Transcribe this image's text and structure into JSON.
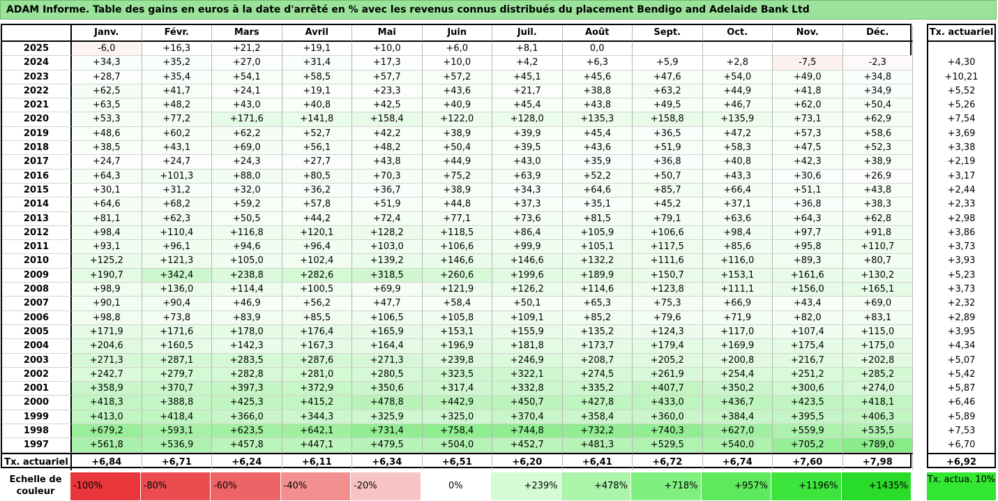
{
  "title": "ADAM Informe. Table des gains en euros à la date d'arrêté en % avec les revenus connus distribués du placement Bendigo and Adelaide Bank Ltd",
  "chart_data": {
    "type": "table",
    "title": "ADAM Informe. Table des gains en euros à la date d'arrêté en % avec les revenus connus distribués du placement Bendigo and Adelaide Bank Ltd",
    "columns": [
      "Janv.",
      "Févr.",
      "Mars",
      "Avril",
      "Mai",
      "Juin",
      "Juil.",
      "Août",
      "Sept.",
      "Oct.",
      "Nov.",
      "Déc."
    ],
    "annual_header": "Tx. actuariel",
    "rows": [
      {
        "year": "2025",
        "values": [
          "-6,0",
          "+16,3",
          "+21,2",
          "+19,1",
          "+10,0",
          "+6,0",
          "+8,1",
          "0,0",
          "",
          "",
          "",
          ""
        ],
        "rate": ""
      },
      {
        "year": "2024",
        "values": [
          "+34,3",
          "+35,2",
          "+27,0",
          "+31,4",
          "+17,3",
          "+10,0",
          "+4,2",
          "+6,3",
          "+5,9",
          "+2,8",
          "-7,5",
          "-2,3"
        ],
        "rate": "+4,30"
      },
      {
        "year": "2023",
        "values": [
          "+28,7",
          "+35,4",
          "+54,1",
          "+58,5",
          "+57,7",
          "+57,2",
          "+45,1",
          "+45,6",
          "+47,6",
          "+54,0",
          "+49,0",
          "+34,8"
        ],
        "rate": "+10,21"
      },
      {
        "year": "2022",
        "values": [
          "+62,5",
          "+41,7",
          "+24,1",
          "+19,1",
          "+23,3",
          "+43,6",
          "+21,7",
          "+38,8",
          "+63,2",
          "+44,9",
          "+41,8",
          "+34,9"
        ],
        "rate": "+5,52"
      },
      {
        "year": "2021",
        "values": [
          "+63,5",
          "+48,2",
          "+43,0",
          "+40,8",
          "+42,5",
          "+40,9",
          "+45,4",
          "+43,8",
          "+49,5",
          "+46,7",
          "+62,0",
          "+50,4"
        ],
        "rate": "+5,26"
      },
      {
        "year": "2020",
        "values": [
          "+53,3",
          "+77,2",
          "+171,6",
          "+141,8",
          "+158,4",
          "+122,0",
          "+128,0",
          "+135,3",
          "+158,8",
          "+135,9",
          "+73,1",
          "+62,9"
        ],
        "rate": "+7,54"
      },
      {
        "year": "2019",
        "values": [
          "+48,6",
          "+60,2",
          "+62,2",
          "+52,7",
          "+42,2",
          "+38,9",
          "+39,9",
          "+45,4",
          "+36,5",
          "+47,2",
          "+57,3",
          "+58,6"
        ],
        "rate": "+3,69"
      },
      {
        "year": "2018",
        "values": [
          "+38,5",
          "+43,1",
          "+69,0",
          "+56,1",
          "+48,2",
          "+50,4",
          "+39,5",
          "+43,6",
          "+51,9",
          "+58,3",
          "+47,5",
          "+52,3"
        ],
        "rate": "+3,38"
      },
      {
        "year": "2017",
        "values": [
          "+24,7",
          "+24,7",
          "+24,3",
          "+27,7",
          "+43,8",
          "+44,9",
          "+43,0",
          "+35,9",
          "+36,8",
          "+40,8",
          "+42,3",
          "+38,9"
        ],
        "rate": "+2,19"
      },
      {
        "year": "2016",
        "values": [
          "+64,3",
          "+101,3",
          "+88,0",
          "+80,5",
          "+70,3",
          "+75,2",
          "+63,9",
          "+52,2",
          "+50,7",
          "+43,3",
          "+30,6",
          "+26,9"
        ],
        "rate": "+3,17"
      },
      {
        "year": "2015",
        "values": [
          "+30,1",
          "+31,2",
          "+32,0",
          "+36,2",
          "+36,7",
          "+38,9",
          "+34,3",
          "+64,6",
          "+85,7",
          "+66,4",
          "+51,1",
          "+43,8"
        ],
        "rate": "+2,44"
      },
      {
        "year": "2014",
        "values": [
          "+64,6",
          "+68,2",
          "+59,2",
          "+57,8",
          "+51,9",
          "+44,8",
          "+37,3",
          "+35,1",
          "+45,2",
          "+37,1",
          "+36,8",
          "+38,3"
        ],
        "rate": "+2,33"
      },
      {
        "year": "2013",
        "values": [
          "+81,1",
          "+62,3",
          "+50,5",
          "+44,2",
          "+72,4",
          "+77,1",
          "+73,6",
          "+81,5",
          "+79,1",
          "+63,6",
          "+64,3",
          "+62,8"
        ],
        "rate": "+2,98"
      },
      {
        "year": "2012",
        "values": [
          "+98,4",
          "+110,4",
          "+116,8",
          "+120,1",
          "+128,2",
          "+118,5",
          "+86,4",
          "+105,9",
          "+106,6",
          "+98,4",
          "+97,7",
          "+91,8"
        ],
        "rate": "+3,86"
      },
      {
        "year": "2011",
        "values": [
          "+93,1",
          "+96,1",
          "+94,6",
          "+96,4",
          "+103,0",
          "+106,6",
          "+99,9",
          "+105,1",
          "+117,5",
          "+85,6",
          "+95,8",
          "+110,7"
        ],
        "rate": "+3,73"
      },
      {
        "year": "2010",
        "values": [
          "+125,2",
          "+121,3",
          "+105,0",
          "+102,4",
          "+139,2",
          "+146,6",
          "+146,6",
          "+132,2",
          "+111,6",
          "+116,0",
          "+89,3",
          "+80,7"
        ],
        "rate": "+3,93"
      },
      {
        "year": "2009",
        "values": [
          "+190,7",
          "+342,4",
          "+238,8",
          "+282,6",
          "+318,5",
          "+260,6",
          "+199,6",
          "+189,9",
          "+150,7",
          "+153,1",
          "+161,6",
          "+130,2"
        ],
        "rate": "+5,23"
      },
      {
        "year": "2008",
        "values": [
          "+98,9",
          "+136,0",
          "+114,4",
          "+100,5",
          "+69,9",
          "+121,9",
          "+126,2",
          "+114,6",
          "+123,8",
          "+111,1",
          "+156,0",
          "+165,1"
        ],
        "rate": "+3,73"
      },
      {
        "year": "2007",
        "values": [
          "+90,1",
          "+90,4",
          "+46,9",
          "+56,2",
          "+47,7",
          "+58,4",
          "+50,1",
          "+65,3",
          "+75,3",
          "+66,9",
          "+43,4",
          "+69,0"
        ],
        "rate": "+2,32"
      },
      {
        "year": "2006",
        "values": [
          "+98,8",
          "+73,8",
          "+83,9",
          "+85,5",
          "+106,5",
          "+105,8",
          "+109,1",
          "+85,2",
          "+79,6",
          "+71,9",
          "+82,0",
          "+83,1"
        ],
        "rate": "+2,89"
      },
      {
        "year": "2005",
        "values": [
          "+171,9",
          "+171,6",
          "+178,0",
          "+176,4",
          "+165,9",
          "+153,1",
          "+155,9",
          "+135,2",
          "+124,3",
          "+117,0",
          "+107,4",
          "+115,0"
        ],
        "rate": "+3,95"
      },
      {
        "year": "2004",
        "values": [
          "+204,6",
          "+160,5",
          "+142,3",
          "+167,3",
          "+164,4",
          "+196,9",
          "+181,8",
          "+173,7",
          "+179,4",
          "+169,9",
          "+175,4",
          "+175,0"
        ],
        "rate": "+4,34"
      },
      {
        "year": "2003",
        "values": [
          "+271,3",
          "+287,1",
          "+283,5",
          "+287,6",
          "+271,3",
          "+239,8",
          "+246,9",
          "+208,7",
          "+205,2",
          "+200,8",
          "+216,7",
          "+202,8"
        ],
        "rate": "+5,07"
      },
      {
        "year": "2002",
        "values": [
          "+242,7",
          "+279,7",
          "+282,8",
          "+281,0",
          "+280,5",
          "+323,5",
          "+322,1",
          "+274,5",
          "+261,9",
          "+254,4",
          "+251,2",
          "+285,2"
        ],
        "rate": "+5,42"
      },
      {
        "year": "2001",
        "values": [
          "+358,9",
          "+370,7",
          "+397,3",
          "+372,9",
          "+350,6",
          "+317,4",
          "+332,8",
          "+335,2",
          "+407,7",
          "+350,2",
          "+300,6",
          "+274,0"
        ],
        "rate": "+5,87"
      },
      {
        "year": "2000",
        "values": [
          "+418,3",
          "+388,8",
          "+425,3",
          "+415,2",
          "+478,8",
          "+442,9",
          "+450,7",
          "+427,8",
          "+433,0",
          "+436,7",
          "+423,5",
          "+418,1"
        ],
        "rate": "+6,46"
      },
      {
        "year": "1999",
        "values": [
          "+413,0",
          "+418,4",
          "+366,0",
          "+344,3",
          "+325,9",
          "+325,0",
          "+370,4",
          "+358,4",
          "+360,0",
          "+384,4",
          "+395,5",
          "+406,3"
        ],
        "rate": "+5,89"
      },
      {
        "year": "1998",
        "values": [
          "+679,2",
          "+593,1",
          "+623,5",
          "+642,1",
          "+731,4",
          "+758,4",
          "+744,8",
          "+732,2",
          "+740,3",
          "+627,0",
          "+559,9",
          "+535,5"
        ],
        "rate": "+7,53"
      },
      {
        "year": "1997",
        "values": [
          "+561,8",
          "+536,9",
          "+457,8",
          "+447,1",
          "+479,5",
          "+504,0",
          "+452,7",
          "+481,3",
          "+529,5",
          "+540,0",
          "+705,2",
          "+789,0"
        ],
        "rate": "+6,70"
      }
    ],
    "totals_label": "Tx. actuariel",
    "totals": [
      "+6,84",
      "+6,71",
      "+6,24",
      "+6,11",
      "+6,34",
      "+6,51",
      "+6,20",
      "+6,41",
      "+6,72",
      "+6,74",
      "+7,60",
      "+7,98"
    ],
    "total_rate": "+6,92",
    "color_scale": {
      "label": "Echelle de couleur",
      "stops": [
        {
          "label": "-100%",
          "value": -100,
          "color": "#e8363b"
        },
        {
          "label": "-80%",
          "value": -80,
          "color": "#ea4c50"
        },
        {
          "label": "-60%",
          "value": -60,
          "color": "#ee6366"
        },
        {
          "label": "-40%",
          "value": -40,
          "color": "#f48f91"
        },
        {
          "label": "-20%",
          "value": -20,
          "color": "#f8c3c4"
        },
        {
          "label": "0%",
          "value": 0,
          "color": "#ffffff"
        },
        {
          "label": "+239%",
          "value": 239,
          "color": "#d5fbd5"
        },
        {
          "label": "+478%",
          "value": 478,
          "color": "#aaf5aa"
        },
        {
          "label": "+718%",
          "value": 718,
          "color": "#7ff07f"
        },
        {
          "label": "+957%",
          "value": 957,
          "color": "#5de95d"
        },
        {
          "label": "+1196%",
          "value": 1196,
          "color": "#3ce43c"
        },
        {
          "label": "+1435%",
          "value": 1435,
          "color": "#29dc29"
        }
      ],
      "rate_label": "Tx. actua. 10%",
      "rate_color": "#32e632"
    }
  }
}
